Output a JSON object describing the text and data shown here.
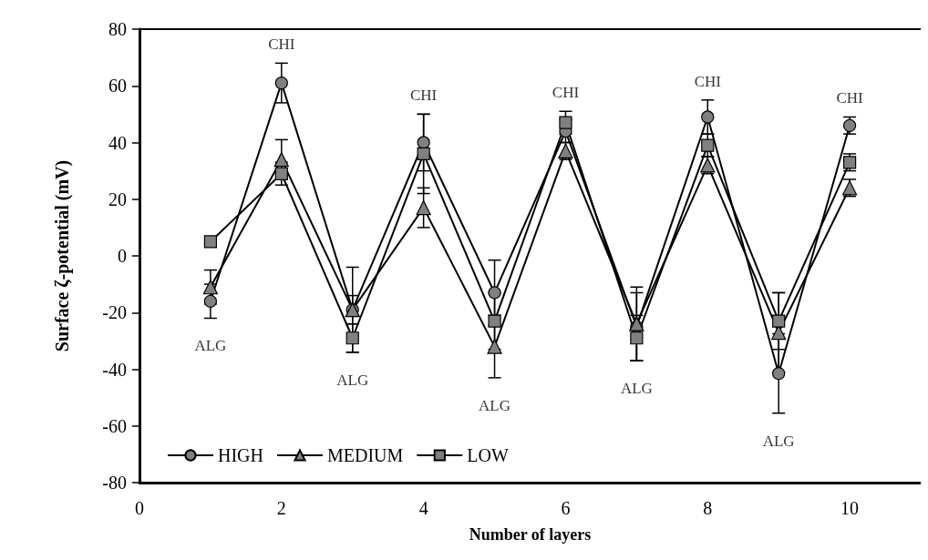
{
  "chart_data": {
    "type": "line",
    "xlabel": "Number of layers",
    "ylabel": "Surface ζ-potential (mV)",
    "xlim": [
      0,
      11
    ],
    "xticks": [
      0,
      2,
      4,
      6,
      8,
      10
    ],
    "ylim": [
      -80,
      80
    ],
    "yticks": [
      -80,
      -60,
      -40,
      -20,
      0,
      20,
      40,
      60,
      80
    ],
    "grid": false,
    "legend": "bottom left",
    "line_style": "solid",
    "series": [
      {
        "name": "HIGH",
        "color": "#808080",
        "marker": "circle",
        "x": [
          1,
          2,
          3,
          4,
          5,
          6,
          7,
          8,
          9,
          10
        ],
        "values": [
          -16,
          61,
          -19,
          40,
          -13,
          44,
          -25,
          49,
          -41.5,
          46
        ],
        "errors": [
          6,
          7,
          15,
          10,
          11.5,
          4,
          12,
          6,
          14,
          3
        ]
      },
      {
        "name": "MEDIUM",
        "color": "#808080",
        "marker": "triangle",
        "x": [
          1,
          2,
          3,
          4,
          5,
          6,
          7,
          8,
          9,
          10
        ],
        "values": [
          -11,
          34,
          -19,
          17,
          -32,
          37,
          -24,
          32,
          -27,
          24
        ],
        "errors": [
          6,
          7,
          5,
          7,
          11,
          3,
          13,
          3,
          14,
          3
        ]
      },
      {
        "name": "LOW",
        "color": "#808080",
        "marker": "square",
        "x": [
          1,
          2,
          3,
          4,
          5,
          6,
          7,
          8,
          9,
          10
        ],
        "values": [
          5,
          29,
          -29,
          36,
          -23,
          47,
          -29,
          39,
          -23,
          33
        ],
        "errors": [
          1,
          4,
          5,
          14,
          10,
          4,
          8,
          4,
          10,
          3
        ]
      }
    ],
    "annotations": [
      "ALG",
      "CHI",
      "ALG",
      "CHI",
      "ALG",
      "CHI",
      "ALG",
      "CHI",
      "ALG",
      "CHI"
    ]
  }
}
